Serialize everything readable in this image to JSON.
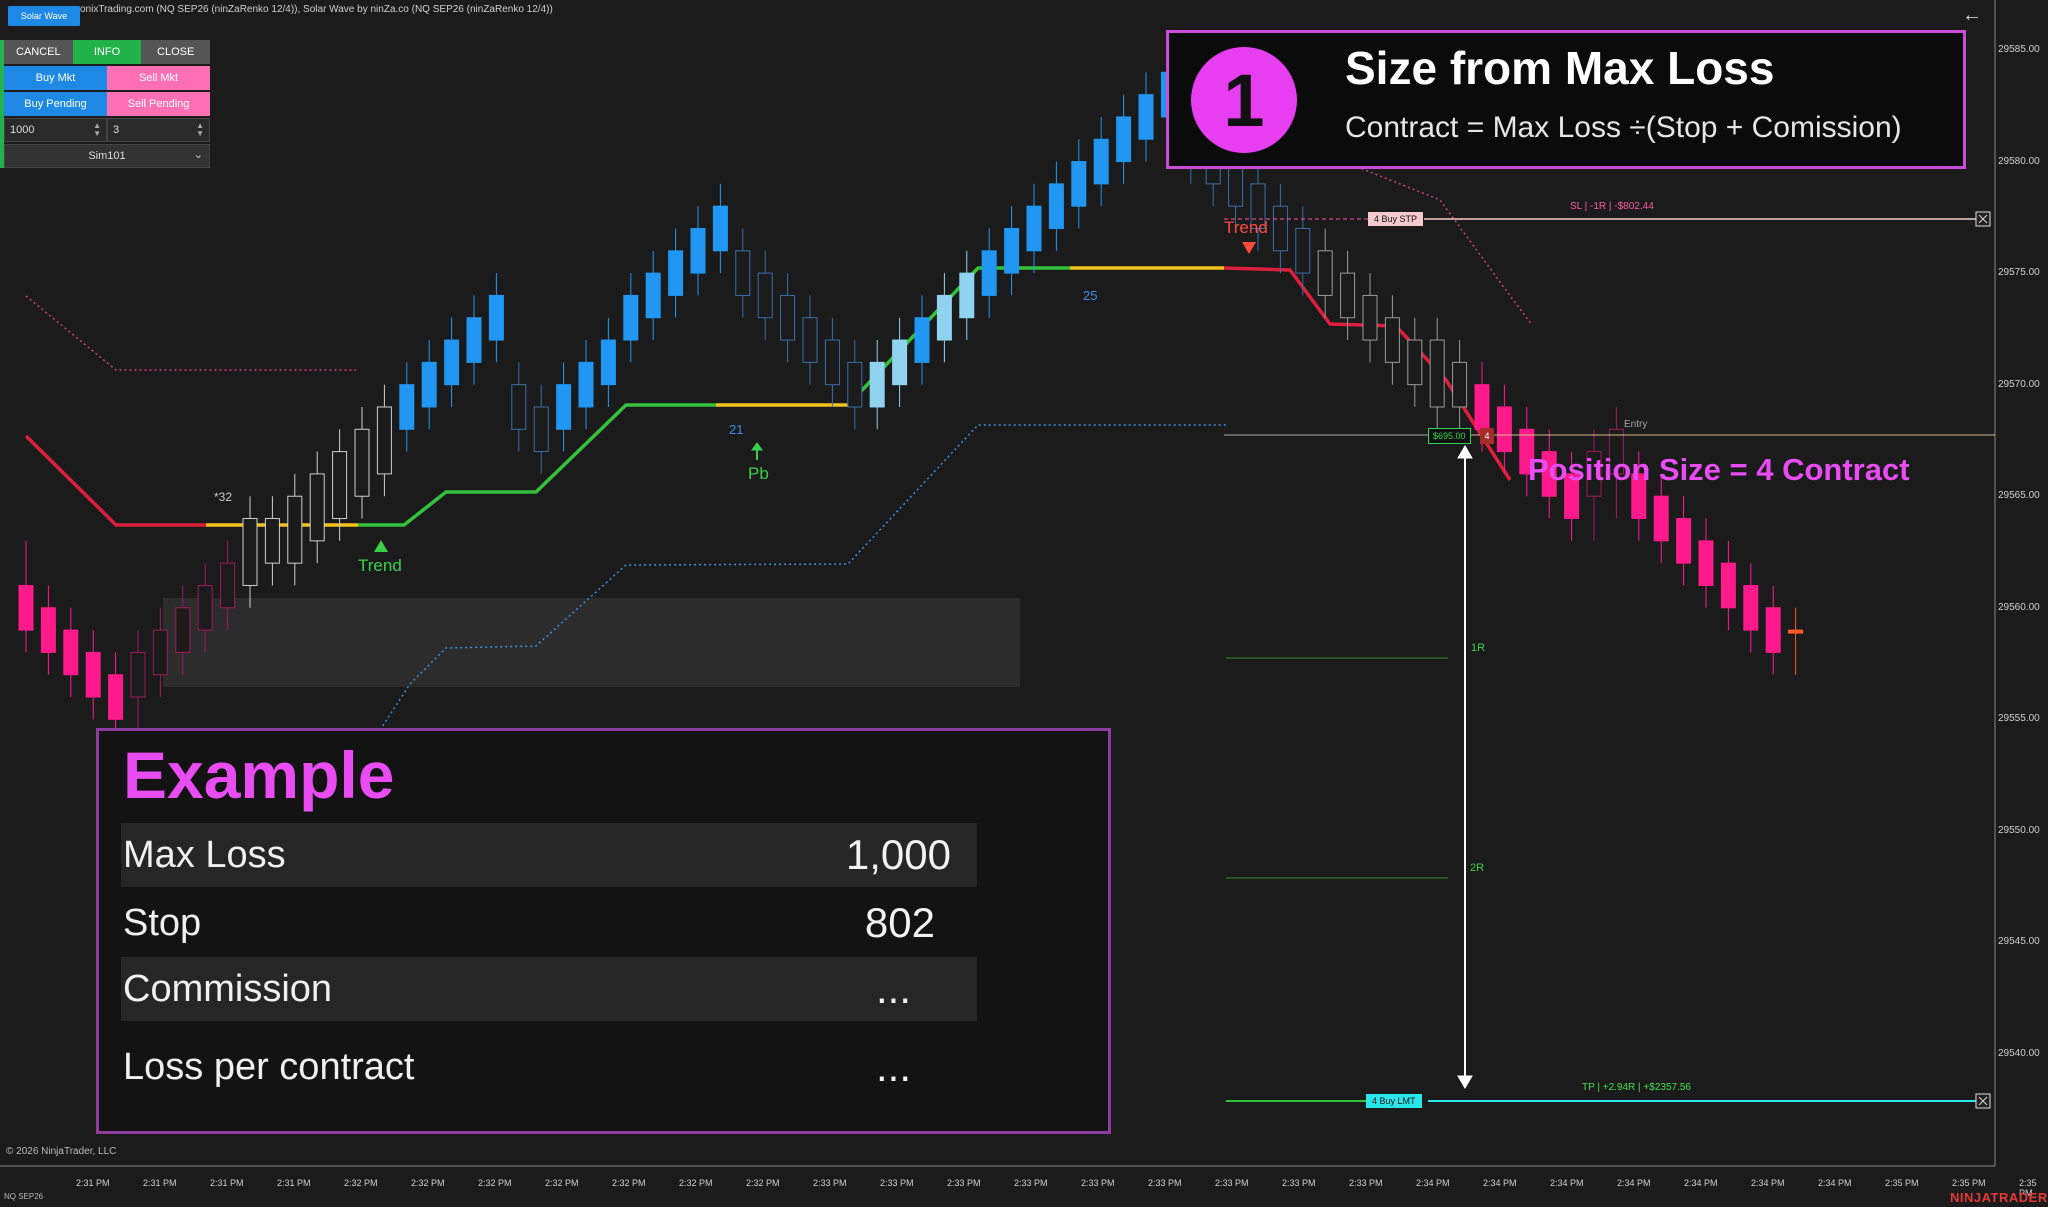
{
  "header": {
    "title": "onixTrading.com (NQ SEP26 (ninZaRenko 12/4)), Solar Wave by ninZa.co (NQ SEP26 (ninZaRenko 12/4))",
    "chip_label": "Solar Wave",
    "back_icon": "arrow-left-icon"
  },
  "trade_panel": {
    "cancel": "CANCEL",
    "info": "INFO",
    "close": "CLOSE",
    "buy_mkt": "Buy Mkt",
    "sell_mkt": "Sell Mkt",
    "buy_pending": "Buy Pending",
    "sell_pending": "Sell Pending",
    "qty_value": "1000",
    "ticks_value": "3",
    "account": "Sim101"
  },
  "callout": {
    "number": "1",
    "title": "Size from Max Loss",
    "formula": "Contract = Max Loss ÷(Stop + Comission)"
  },
  "example": {
    "title": "Example",
    "rows": [
      {
        "label": "Max Loss",
        "value": "1,000"
      },
      {
        "label": "Stop",
        "value": "802"
      },
      {
        "label": "Commission",
        "value": "..."
      },
      {
        "label": "Loss per contract",
        "value": "..."
      }
    ]
  },
  "position_size": "Position Size = 4 Contract",
  "orders": {
    "sl_label": "SL | -1R | -$802.44",
    "stp_chip": "4  Buy STP",
    "tp_label": "TP | +2.94R | +$2357.56",
    "lmt_chip": "4  Buy LMT",
    "entry_label": "Entry",
    "entry_price": "$695.00",
    "entry_qty": "4",
    "r1": "1R",
    "r2": "2R"
  },
  "annotations": {
    "trend_down": "Trend",
    "trend_up": "Trend",
    "pb": "Pb",
    "n21": "21",
    "n25": "25",
    "n32": "*32"
  },
  "price_axis": [
    "29585.00",
    "29580.00",
    "29575.00",
    "29570.00",
    "29565.00",
    "29560.00",
    "29555.00",
    "29550.00",
    "29545.00",
    "29540.00"
  ],
  "time_axis": [
    "2:31 PM",
    "2:31 PM",
    "2:31 PM",
    "2:31 PM",
    "2:32 PM",
    "2:32 PM",
    "2:32 PM",
    "2:32 PM",
    "2:32 PM",
    "2:32 PM",
    "2:32 PM",
    "2:33 PM",
    "2:33 PM",
    "2:33 PM",
    "2:33 PM",
    "2:33 PM",
    "2:33 PM",
    "2:33 PM",
    "2:33 PM",
    "2:33 PM",
    "2:34 PM",
    "2:34 PM",
    "2:34 PM",
    "2:34 PM",
    "2:34 PM",
    "2:34 PM",
    "2:34 PM",
    "2:35 PM",
    "2:35 PM",
    "2:35 PM"
  ],
  "footer": {
    "copyright": "© 2026 NinjaTrader, LLC",
    "instrument": "NQ SEP26",
    "brand": "NINJATRADER"
  },
  "candles": [
    {
      "o": 29561,
      "c": 29559,
      "h": 29563,
      "l": 29558,
      "k": "pink"
    },
    {
      "o": 29560,
      "c": 29558,
      "h": 29561,
      "l": 29557,
      "k": "pink"
    },
    {
      "o": 29559,
      "c": 29557,
      "h": 29560,
      "l": 29556,
      "k": "pink"
    },
    {
      "o": 29558,
      "c": 29556,
      "h": 29559,
      "l": 29555,
      "k": "pink"
    },
    {
      "o": 29557,
      "c": 29555,
      "h": 29558,
      "l": 29554,
      "k": "pink"
    },
    {
      "o": 29556,
      "c": 29558,
      "h": 29559,
      "l": 29554,
      "k": "dpink"
    },
    {
      "o": 29557,
      "c": 29559,
      "h": 29560,
      "l": 29556,
      "k": "dpink"
    },
    {
      "o": 29558,
      "c": 29560,
      "h": 29561,
      "l": 29557,
      "k": "dpink"
    },
    {
      "o": 29559,
      "c": 29561,
      "h": 29562,
      "l": 29558,
      "k": "dpink"
    },
    {
      "o": 29560,
      "c": 29562,
      "h": 29563,
      "l": 29559,
      "k": "dpink"
    },
    {
      "o": 29561,
      "c": 29564,
      "h": 29565,
      "l": 29560,
      "k": "gray"
    },
    {
      "o": 29562,
      "c": 29564,
      "h": 29565,
      "l": 29561,
      "k": "gray"
    },
    {
      "o": 29562,
      "c": 29565,
      "h": 29566,
      "l": 29561,
      "k": "gray"
    },
    {
      "o": 29563,
      "c": 29566,
      "h": 29567,
      "l": 29562,
      "k": "gray"
    },
    {
      "o": 29564,
      "c": 29567,
      "h": 29568,
      "l": 29563,
      "k": "gray"
    },
    {
      "o": 29565,
      "c": 29568,
      "h": 29569,
      "l": 29564,
      "k": "gray"
    },
    {
      "o": 29566,
      "c": 29569,
      "h": 29570,
      "l": 29565,
      "k": "gray"
    },
    {
      "o": 29568,
      "c": 29570,
      "h": 29571,
      "l": 29567,
      "k": "blue"
    },
    {
      "o": 29569,
      "c": 29571,
      "h": 29572,
      "l": 29568,
      "k": "blue"
    },
    {
      "o": 29570,
      "c": 29572,
      "h": 29573,
      "l": 29569,
      "k": "blue"
    },
    {
      "o": 29571,
      "c": 29573,
      "h": 29574,
      "l": 29570,
      "k": "blue"
    },
    {
      "o": 29572,
      "c": 29574,
      "h": 29575,
      "l": 29571,
      "k": "blue"
    },
    {
      "o": 29570,
      "c": 29568,
      "h": 29571,
      "l": 29567,
      "k": "hblue"
    },
    {
      "o": 29569,
      "c": 29567,
      "h": 29570,
      "l": 29566,
      "k": "hblue"
    },
    {
      "o": 29568,
      "c": 29570,
      "h": 29571,
      "l": 29567,
      "k": "blue"
    },
    {
      "o": 29569,
      "c": 29571,
      "h": 29572,
      "l": 29568,
      "k": "blue"
    },
    {
      "o": 29570,
      "c": 29572,
      "h": 29573,
      "l": 29569,
      "k": "blue"
    },
    {
      "o": 29572,
      "c": 29574,
      "h": 29575,
      "l": 29571,
      "k": "blue"
    },
    {
      "o": 29573,
      "c": 29575,
      "h": 29576,
      "l": 29572,
      "k": "blue"
    },
    {
      "o": 29574,
      "c": 29576,
      "h": 29577,
      "l": 29573,
      "k": "blue"
    },
    {
      "o": 29575,
      "c": 29577,
      "h": 29578,
      "l": 29574,
      "k": "blue"
    },
    {
      "o": 29576,
      "c": 29578,
      "h": 29579,
      "l": 29575,
      "k": "blue"
    },
    {
      "o": 29576,
      "c": 29574,
      "h": 29577,
      "l": 29573,
      "k": "hblue"
    },
    {
      "o": 29575,
      "c": 29573,
      "h": 29576,
      "l": 29572,
      "k": "hblue"
    },
    {
      "o": 29574,
      "c": 29572,
      "h": 29575,
      "l": 29571,
      "k": "hblue"
    },
    {
      "o": 29573,
      "c": 29571,
      "h": 29574,
      "l": 29570,
      "k": "hblue"
    },
    {
      "o": 29572,
      "c": 29570,
      "h": 29573,
      "l": 29569,
      "k": "hblue"
    },
    {
      "o": 29571,
      "c": 29569,
      "h": 29572,
      "l": 29568,
      "k": "hblue"
    },
    {
      "o": 29569,
      "c": 29571,
      "h": 29572,
      "l": 29568,
      "k": "lblue"
    },
    {
      "o": 29570,
      "c": 29572,
      "h": 29573,
      "l": 29569,
      "k": "lblue"
    },
    {
      "o": 29571,
      "c": 29573,
      "h": 29574,
      "l": 29570,
      "k": "blue"
    },
    {
      "o": 29572,
      "c": 29574,
      "h": 29575,
      "l": 29571,
      "k": "lblue"
    },
    {
      "o": 29573,
      "c": 29575,
      "h": 29576,
      "l": 29572,
      "k": "lblue"
    },
    {
      "o": 29574,
      "c": 29576,
      "h": 29577,
      "l": 29573,
      "k": "blue"
    },
    {
      "o": 29575,
      "c": 29577,
      "h": 29578,
      "l": 29574,
      "k": "blue"
    },
    {
      "o": 29576,
      "c": 29578,
      "h": 29579,
      "l": 29575,
      "k": "blue"
    },
    {
      "o": 29577,
      "c": 29579,
      "h": 29580,
      "l": 29576,
      "k": "blue"
    },
    {
      "o": 29578,
      "c": 29580,
      "h": 29581,
      "l": 29577,
      "k": "blue"
    },
    {
      "o": 29579,
      "c": 29581,
      "h": 29582,
      "l": 29578,
      "k": "blue"
    },
    {
      "o": 29580,
      "c": 29582,
      "h": 29583,
      "l": 29579,
      "k": "blue"
    },
    {
      "o": 29581,
      "c": 29583,
      "h": 29584,
      "l": 29580,
      "k": "blue"
    },
    {
      "o": 29582,
      "c": 29584,
      "h": 29585,
      "l": 29581,
      "k": "blue"
    },
    {
      "o": 29582,
      "c": 29580,
      "h": 29584,
      "l": 29579,
      "k": "hblue"
    },
    {
      "o": 29581,
      "c": 29579,
      "h": 29582,
      "l": 29578,
      "k": "hblue"
    },
    {
      "o": 29580,
      "c": 29578,
      "h": 29581,
      "l": 29577,
      "k": "hblue"
    },
    {
      "o": 29579,
      "c": 29577,
      "h": 29580,
      "l": 29576,
      "k": "hblue"
    },
    {
      "o": 29578,
      "c": 29576,
      "h": 29579,
      "l": 29575,
      "k": "hblue"
    },
    {
      "o": 29577,
      "c": 29575,
      "h": 29578,
      "l": 29574,
      "k": "hblue"
    },
    {
      "o": 29576,
      "c": 29574,
      "h": 29577,
      "l": 29573,
      "k": "hgray"
    },
    {
      "o": 29575,
      "c": 29573,
      "h": 29576,
      "l": 29572,
      "k": "hgray"
    },
    {
      "o": 29574,
      "c": 29572,
      "h": 29575,
      "l": 29571,
      "k": "hgray"
    },
    {
      "o": 29573,
      "c": 29571,
      "h": 29574,
      "l": 29570,
      "k": "hgray"
    },
    {
      "o": 29572,
      "c": 29570,
      "h": 29573,
      "l": 29569,
      "k": "hgray"
    },
    {
      "o": 29572,
      "c": 29569,
      "h": 29573,
      "l": 29568,
      "k": "hgray"
    },
    {
      "o": 29571,
      "c": 29569,
      "h": 29572,
      "l": 29568,
      "k": "hgray"
    },
    {
      "o": 29570,
      "c": 29568,
      "h": 29571,
      "l": 29567,
      "k": "pink"
    },
    {
      "o": 29569,
      "c": 29567,
      "h": 29570,
      "l": 29566,
      "k": "pink"
    },
    {
      "o": 29568,
      "c": 29566,
      "h": 29569,
      "l": 29565,
      "k": "pink"
    },
    {
      "o": 29567,
      "c": 29565,
      "h": 29568,
      "l": 29564,
      "k": "pink"
    },
    {
      "o": 29566,
      "c": 29564,
      "h": 29567,
      "l": 29563,
      "k": "pink"
    },
    {
      "o": 29565,
      "c": 29567,
      "h": 29568,
      "l": 29563,
      "k": "dpink"
    },
    {
      "o": 29566,
      "c": 29568,
      "h": 29569,
      "l": 29564,
      "k": "dpink"
    },
    {
      "o": 29566,
      "c": 29564,
      "h": 29567,
      "l": 29563,
      "k": "pink"
    },
    {
      "o": 29565,
      "c": 29563,
      "h": 29566,
      "l": 29562,
      "k": "pink"
    },
    {
      "o": 29564,
      "c": 29562,
      "h": 29565,
      "l": 29561,
      "k": "pink"
    },
    {
      "o": 29563,
      "c": 29561,
      "h": 29564,
      "l": 29560,
      "k": "pink"
    },
    {
      "o": 29562,
      "c": 29560,
      "h": 29563,
      "l": 29559,
      "k": "pink"
    },
    {
      "o": 29561,
      "c": 29559,
      "h": 29562,
      "l": 29558,
      "k": "pink"
    },
    {
      "o": 29560,
      "c": 29558,
      "h": 29561,
      "l": 29557,
      "k": "pink"
    },
    {
      "o": 29559,
      "c": 29559,
      "h": 29560,
      "l": 29557,
      "k": "cur"
    }
  ]
}
